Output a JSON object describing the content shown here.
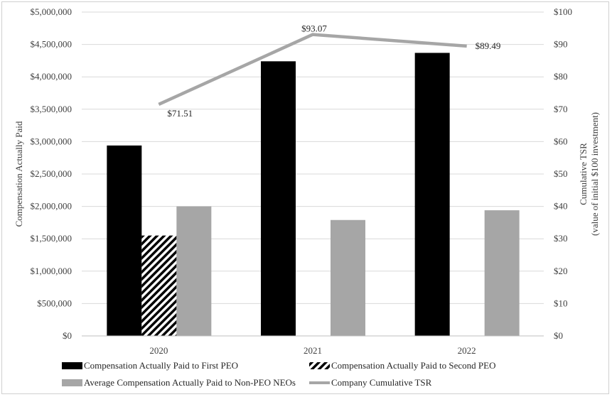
{
  "colors": {
    "first_peo": "#000000",
    "second_peo_hatch": "#000000",
    "non_peo": "#a6a6a6",
    "tsr_line": "#a6a6a6",
    "grid": "#d9d9d9"
  },
  "chart_data": {
    "type": "bar",
    "title": "",
    "categories": [
      "2020",
      "2021",
      "2022"
    ],
    "ylabel": "Compensation Actually Paid",
    "ylabel_right": [
      "Cumulative TSR",
      "(value of initial $100 investment)"
    ],
    "ylim": [
      0,
      5000000
    ],
    "ylim_right": [
      0,
      100
    ],
    "y_ticks": [
      "$0",
      "$500,000",
      "$1,000,000",
      "$1,500,000",
      "$2,000,000",
      "$2,500,000",
      "$3,000,000",
      "$3,500,000",
      "$4,000,000",
      "$4,500,000",
      "$5,000,000"
    ],
    "y_ticks_right": [
      "$0",
      "$10",
      "$20",
      "$30",
      "$40",
      "$50",
      "$60",
      "$70",
      "$80",
      "$90",
      "$100"
    ],
    "grid": true,
    "legend_position": "bottom",
    "series": [
      {
        "name": "Compensation Actually Paid to First PEO",
        "type": "bar",
        "values": [
          2940000,
          4240000,
          4370000
        ]
      },
      {
        "name": "Compensation Actually Paid to Second PEO",
        "type": "bar",
        "pattern": "hatch",
        "values": [
          1550000,
          null,
          null
        ]
      },
      {
        "name": "Average Compensation Actually Paid to Non-PEO NEOs",
        "type": "bar",
        "values": [
          2000000,
          1790000,
          1940000
        ]
      },
      {
        "name": "Company Cumulative TSR",
        "type": "line",
        "axis": "right",
        "values": [
          71.51,
          93.07,
          89.49
        ],
        "labels": [
          "$71.51",
          "$93.07",
          "$89.49"
        ]
      }
    ]
  }
}
